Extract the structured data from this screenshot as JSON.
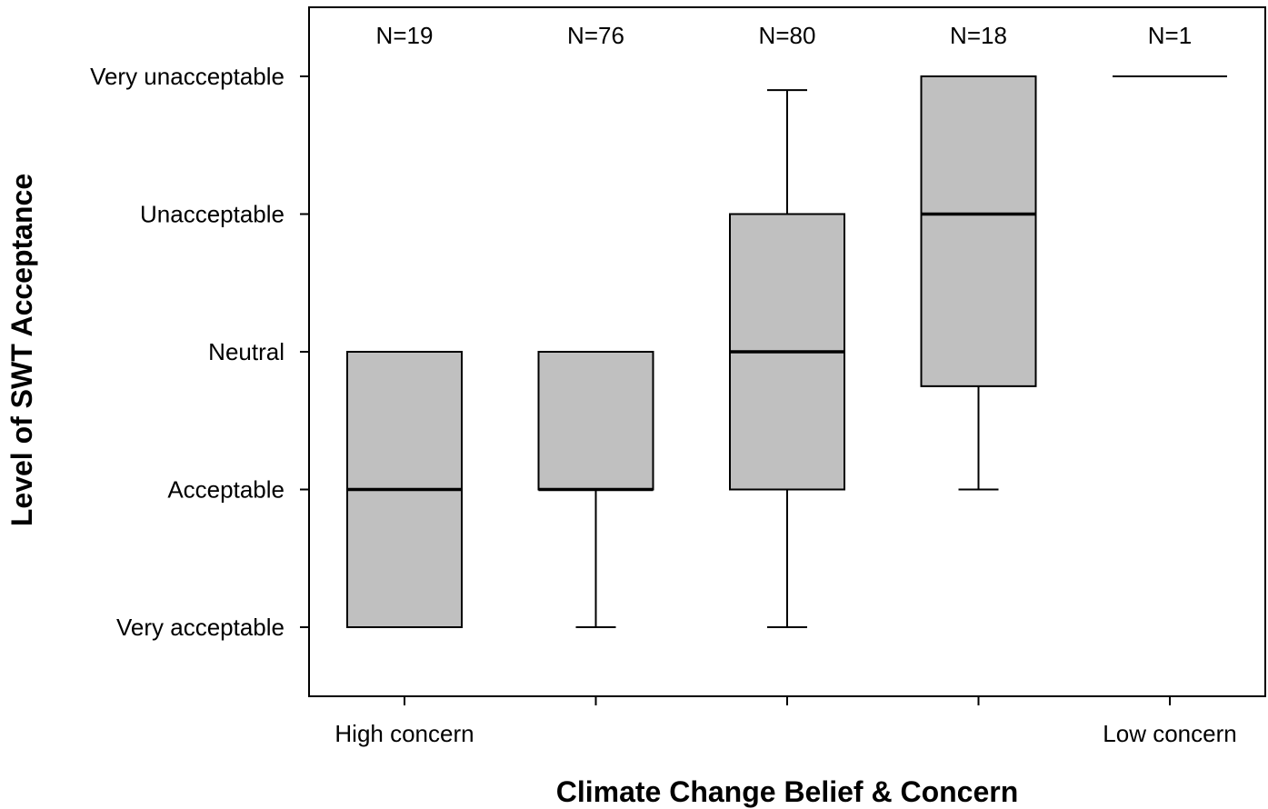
{
  "chart_data": {
    "type": "box",
    "xlabel": "Climate Change Belief & Concern",
    "ylabel": "Level of SWT Acceptance",
    "yticks": [
      {
        "value": 1,
        "label": "Very acceptable"
      },
      {
        "value": 2,
        "label": "Acceptable"
      },
      {
        "value": 3,
        "label": "Neutral"
      },
      {
        "value": 4,
        "label": "Unacceptable"
      },
      {
        "value": 5,
        "label": "Very unacceptable"
      }
    ],
    "ylim": [
      0.5,
      5.5
    ],
    "categories": [
      "High concern",
      "",
      "",
      "",
      "Low concern"
    ],
    "boxes": [
      {
        "n_label": "N=19",
        "whisker_low": 1,
        "q1": 1,
        "median": 2,
        "q3": 3,
        "whisker_high": 3
      },
      {
        "n_label": "N=76",
        "whisker_low": 1,
        "q1": 2,
        "median": 2,
        "q3": 3,
        "whisker_high": 3
      },
      {
        "n_label": "N=80",
        "whisker_low": 1,
        "q1": 2,
        "median": 3,
        "q3": 4,
        "whisker_high": 4.9
      },
      {
        "n_label": "N=18",
        "whisker_low": 2,
        "q1": 2.75,
        "median": 4,
        "q3": 5,
        "whisker_high": 5
      },
      {
        "n_label": "N=1",
        "whisker_low": 5,
        "q1": 5,
        "median": 5,
        "q3": 5,
        "whisker_high": 5
      }
    ],
    "box_fill": "#c0c0c0",
    "line_color": "#000000",
    "grid": false,
    "legend": "none"
  }
}
